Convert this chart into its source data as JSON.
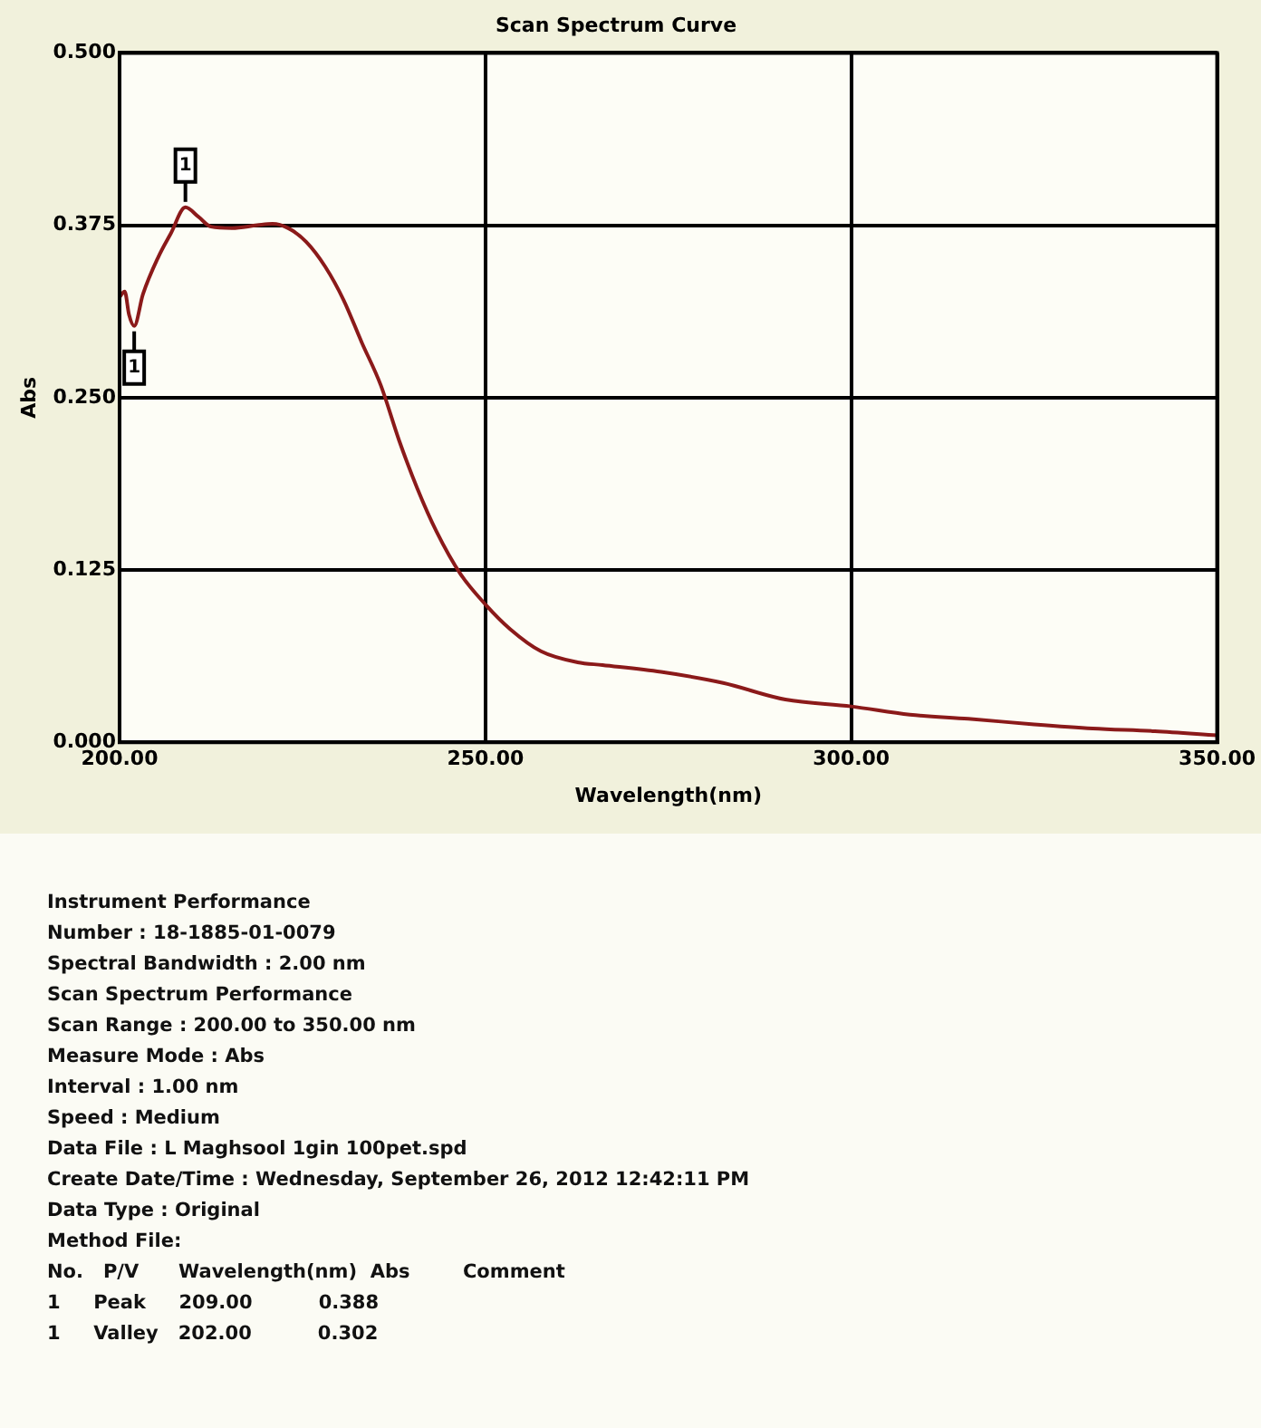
{
  "chart_data": {
    "type": "line",
    "title": "Scan Spectrum Curve",
    "xlabel": "Wavelength(nm)",
    "ylabel": "Abs",
    "series": [
      {
        "color": "#8b1a1a",
        "x": [
          200,
          200.7,
          201.3,
          202,
          203.2,
          205.3,
          207,
          209,
          210.8,
          212.5,
          215.4,
          218.8,
          220.9,
          223,
          225.5,
          228.1,
          230.6,
          233.1,
          235.7,
          238.2,
          240.7,
          243.3,
          246.6,
          250,
          253.4,
          257.6,
          262.6,
          266,
          274,
          282.5,
          291,
          300,
          308,
          316,
          325,
          333,
          341.5,
          350
        ],
        "values": [
          0.323,
          0.327,
          0.31,
          0.302,
          0.325,
          0.352,
          0.369,
          0.388,
          0.381,
          0.374,
          0.373,
          0.375,
          0.376,
          0.373,
          0.363,
          0.345,
          0.321,
          0.29,
          0.259,
          0.219,
          0.184,
          0.153,
          0.122,
          0.1,
          0.082,
          0.066,
          0.058,
          0.056,
          0.051,
          0.043,
          0.031,
          0.026,
          0.02,
          0.017,
          0.013,
          0.01,
          0.008,
          0.005
        ]
      }
    ],
    "xlim": [
      200,
      350
    ],
    "xticks": [
      {
        "value": 200,
        "label": "200.00"
      },
      {
        "value": 250,
        "label": "250.00"
      },
      {
        "value": 300,
        "label": "300.00"
      },
      {
        "value": 350,
        "label": "350.00"
      }
    ],
    "ylim": [
      0,
      0.5
    ],
    "yticks": [
      {
        "value": 0,
        "label": "0.000"
      },
      0.125,
      {
        "value": 0.25,
        "label": "0.250"
      },
      0.375,
      {
        "value": 0.5,
        "label": "0.500"
      }
    ],
    "grid": true,
    "legend": false,
    "annotations": [
      {
        "text": "1",
        "x": 209,
        "y": 0.388
      },
      {
        "text": "1",
        "x": 202,
        "y": 0.302
      },
      "Instrument Performance",
      "Number : 18-1885-01-0079",
      "Spectral Bandwidth : 2.00 nm",
      "Scan Spectrum Performance",
      "Scan Range : 200.00 to 350.00 nm",
      "Measure Mode : Abs",
      "Interval : 1.00 nm",
      "Speed : Medium",
      "Data File : L Maghsool 1gin 100pet.spd",
      "Create Date/Time : Wednesday, September 26, 2012 12:42:11 PM",
      "Data Type : Original",
      "Method File:",
      "No.   P/V      Wavelength(nm)  Abs        Comment",
      "1     Peak     209.00          0.388",
      "1     Valley   202.00          0.302"
    ]
  }
}
